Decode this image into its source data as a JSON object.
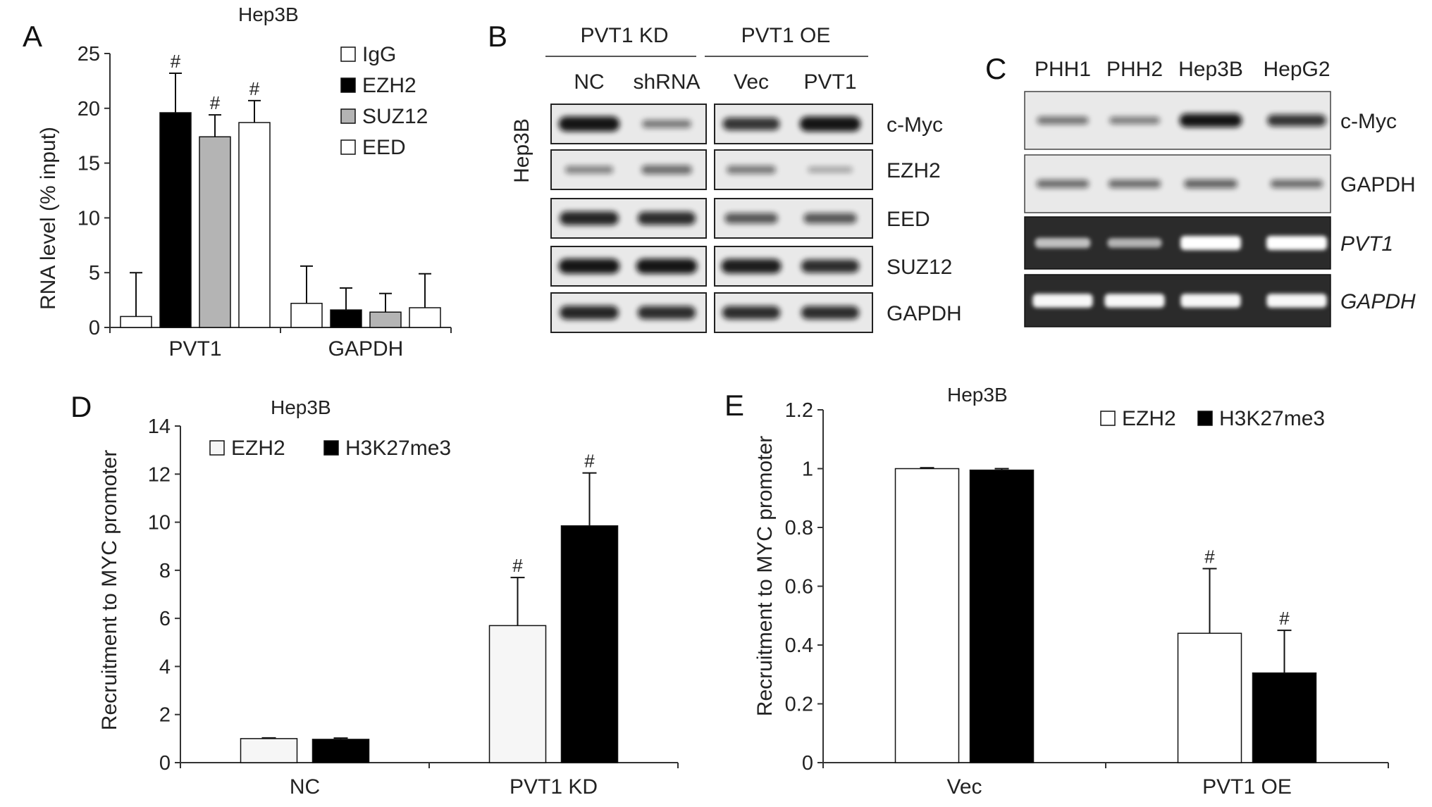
{
  "colors": {
    "EZH2": "#000000",
    "SUZ12": "#b4b4b4",
    "IgG": "#ffffff",
    "EED": "#ffffff",
    "H3K27me3": "#000000",
    "EZH2_light": "#f6f6f6",
    "blot_bg": "#e9e9e9",
    "gel_bg": "#2b2b2b"
  },
  "chart_data": [
    {
      "panel": "A",
      "type": "bar",
      "title": "Hep3B",
      "ylabel": "RNA level (% input)",
      "ylim": [
        0,
        25
      ],
      "yticks": [
        0,
        5,
        10,
        15,
        20,
        25
      ],
      "categories": [
        "PVT1",
        "GAPDH"
      ],
      "legend_position": "top-right",
      "series": [
        {
          "name": "IgG",
          "color": "#ffffff",
          "values": [
            1.0,
            2.2
          ],
          "errors": [
            4.0,
            3.4
          ],
          "marks": [
            "",
            ""
          ]
        },
        {
          "name": "EZH2",
          "color": "#000000",
          "values": [
            19.6,
            1.6
          ],
          "errors": [
            3.6,
            2.0
          ],
          "marks": [
            "#",
            ""
          ]
        },
        {
          "name": "SUZ12",
          "color": "#b4b4b4",
          "values": [
            17.4,
            1.4
          ],
          "errors": [
            2.0,
            1.7
          ],
          "marks": [
            "#",
            ""
          ]
        },
        {
          "name": "EED",
          "color": "#ffffff",
          "values": [
            18.7,
            1.8
          ],
          "errors": [
            2.0,
            3.1
          ],
          "marks": [
            "#",
            ""
          ]
        }
      ]
    },
    {
      "panel": "D",
      "type": "bar",
      "title": "Hep3B",
      "ylabel": "Recruitment to MYC promoter",
      "ylim": [
        0,
        14
      ],
      "yticks": [
        0,
        2,
        4,
        6,
        8,
        10,
        12,
        14
      ],
      "categories": [
        "NC",
        "PVT1 KD"
      ],
      "legend_position": "top-left",
      "series": [
        {
          "name": "EZH2",
          "color": "#f6f6f6",
          "values": [
            1.0,
            5.7
          ],
          "errors": [
            0.03,
            2.0
          ],
          "marks": [
            "",
            "#"
          ]
        },
        {
          "name": "H3K27me3",
          "color": "#000000",
          "values": [
            0.97,
            9.85
          ],
          "errors": [
            0.05,
            2.2
          ],
          "marks": [
            "",
            "#"
          ]
        }
      ]
    },
    {
      "panel": "E",
      "type": "bar",
      "title": "Hep3B",
      "ylabel": "Recruitment to MYC promoter",
      "ylim": [
        0,
        1.2
      ],
      "yticks": [
        0,
        0.2,
        0.4,
        0.6,
        0.8,
        1,
        1.2
      ],
      "categories": [
        "Vec",
        "PVT1 OE"
      ],
      "legend_position": "top-right",
      "series": [
        {
          "name": "EZH2",
          "color": "#ffffff",
          "values": [
            1.0,
            0.44
          ],
          "errors": [
            0.003,
            0.22
          ],
          "marks": [
            "",
            "#"
          ]
        },
        {
          "name": "H3K27me3",
          "color": "#000000",
          "values": [
            0.995,
            0.305
          ],
          "errors": [
            0.005,
            0.145
          ],
          "marks": [
            "",
            "#"
          ]
        }
      ]
    }
  ],
  "blot_B": {
    "panel": "B",
    "groups": [
      "PVT1 KD",
      "PVT1 OE"
    ],
    "lanes": [
      "NC",
      "shRNA",
      "Vec",
      "PVT1"
    ],
    "cell_line": "Hep3B",
    "rows": [
      {
        "label": "c-Myc",
        "intensity": [
          0.95,
          0.35,
          0.75,
          0.95
        ]
      },
      {
        "label": "EZH2",
        "intensity": [
          0.3,
          0.42,
          0.35,
          0.12
        ]
      },
      {
        "label": "EED",
        "intensity": [
          0.85,
          0.8,
          0.55,
          0.55
        ]
      },
      {
        "label": "SUZ12",
        "intensity": [
          0.95,
          0.95,
          0.9,
          0.8
        ]
      },
      {
        "label": "GAPDH",
        "intensity": [
          0.85,
          0.8,
          0.8,
          0.8
        ]
      }
    ]
  },
  "blot_C": {
    "panel": "C",
    "lanes": [
      "PHH1",
      "PHH2",
      "Hep3B",
      "HepG2"
    ],
    "western_rows": [
      {
        "label": "c-Myc",
        "intensity": [
          0.35,
          0.3,
          0.95,
          0.75
        ]
      },
      {
        "label": "GAPDH",
        "intensity": [
          0.4,
          0.4,
          0.45,
          0.4
        ]
      }
    ],
    "gel_rows": [
      {
        "label": "PVT1",
        "intensity": [
          0.55,
          0.45,
          1.0,
          1.0
        ]
      },
      {
        "label": "GAPDH",
        "intensity": [
          0.95,
          0.95,
          0.95,
          0.95
        ]
      }
    ]
  }
}
